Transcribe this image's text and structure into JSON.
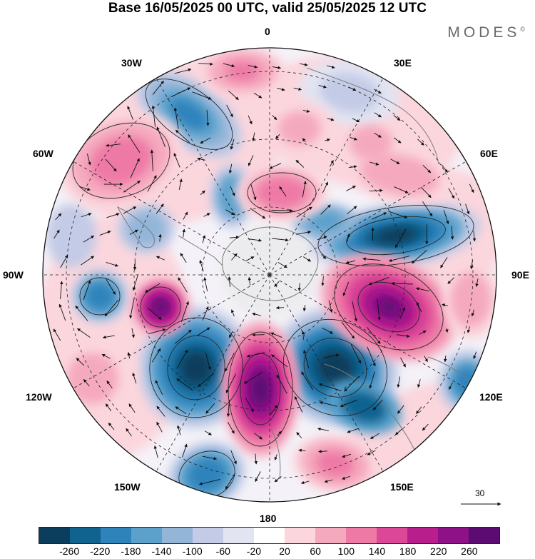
{
  "title": "Base 16/05/2025 00 UTC, valid 25/05/2025 12 UTC",
  "brand": "MODES",
  "brand_mark": "©",
  "longitude_labels": {
    "top": "0",
    "top_left": "30W",
    "top_right": "30E",
    "upper_left": "60W",
    "upper_right": "60E",
    "left": "90W",
    "right": "90E",
    "lower_left": "120W",
    "lower_right": "120E",
    "bottom_left": "150W",
    "bottom_right": "150E",
    "bottom": "180"
  },
  "projection": "south polar stereographic",
  "field": {
    "shaded_anomalies": [
      {
        "region": "central Indian Ocean",
        "sign": "negative",
        "level": -260
      },
      {
        "region": "southern Indian Ocean",
        "sign": "positive",
        "level": 260
      },
      {
        "region": "south of Australia",
        "sign": "negative",
        "level": -220
      },
      {
        "region": "Ross Sea / 180",
        "sign": "positive",
        "level": 260
      },
      {
        "region": "southeast Pacific 150W",
        "sign": "negative",
        "level": -240
      },
      {
        "region": "Amundsen Sea",
        "sign": "positive",
        "level": 260
      },
      {
        "region": "South Atlantic 30W",
        "sign": "negative",
        "level": -140
      },
      {
        "region": "South America 60W",
        "sign": "positive",
        "level": 140
      }
    ]
  },
  "vector_reference": {
    "value": "30"
  },
  "colorbar": {
    "colors": [
      "#0b3d5c",
      "#10628f",
      "#2f83bb",
      "#5ca1cc",
      "#93b5d8",
      "#c3cbe6",
      "#e2e4f2",
      "#ffffff",
      "#fbd6dd",
      "#f5a9be",
      "#ee79a5",
      "#dc4797",
      "#b81f8c",
      "#8e1188",
      "#5c0b73"
    ],
    "tick_labels": [
      "-260",
      "-220",
      "-180",
      "-140",
      "-100",
      "-60",
      "-20",
      "20",
      "60",
      "100",
      "140",
      "180",
      "220",
      "260"
    ]
  }
}
